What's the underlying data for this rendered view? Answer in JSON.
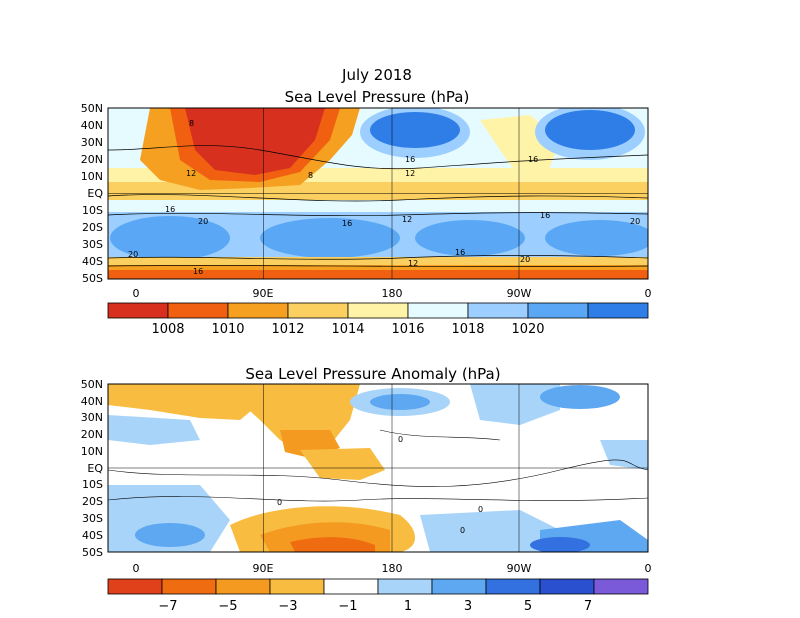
{
  "main_title": "July 2018",
  "panels": [
    {
      "title": "Sea Level Pressure (hPa)",
      "lat_labels": [
        "50N",
        "40N",
        "30N",
        "20N",
        "10N",
        "EQ",
        "10S",
        "20S",
        "30S",
        "40S",
        "50S"
      ],
      "lon_labels": [
        "0",
        "90E",
        "180",
        "90W",
        "0"
      ],
      "colorbar": {
        "colors": [
          "#d7301f",
          "#f06010",
          "#f5a020",
          "#fbd060",
          "#fff3a8",
          "#e6fbff",
          "#9ccfff",
          "#5aa8f5",
          "#2f7ee8"
        ],
        "labels": [
          "1008",
          "1010",
          "1012",
          "1014",
          "1016",
          "1018",
          "1020"
        ]
      },
      "contour_labels": [
        "8",
        "12",
        "16",
        "20"
      ]
    },
    {
      "title": "Sea Level Pressure Anomaly (hPa)",
      "lat_labels": [
        "50N",
        "40N",
        "30N",
        "20N",
        "10N",
        "EQ",
        "10S",
        "20S",
        "30S",
        "40S",
        "50S"
      ],
      "lon_labels": [
        "0",
        "90E",
        "180",
        "90W",
        "0"
      ],
      "colorbar": {
        "colors": [
          "#e0401a",
          "#f06c10",
          "#f59a20",
          "#f8bc40",
          "#ffffff",
          "#a8d4fa",
          "#5ea8f2",
          "#3370e0",
          "#2a50d0",
          "#7a5ad8"
        ],
        "labels": [
          "−7",
          "−5",
          "−3",
          "−1",
          "1",
          "3",
          "5",
          "7"
        ]
      },
      "contour_labels": [
        "0"
      ]
    }
  ]
}
